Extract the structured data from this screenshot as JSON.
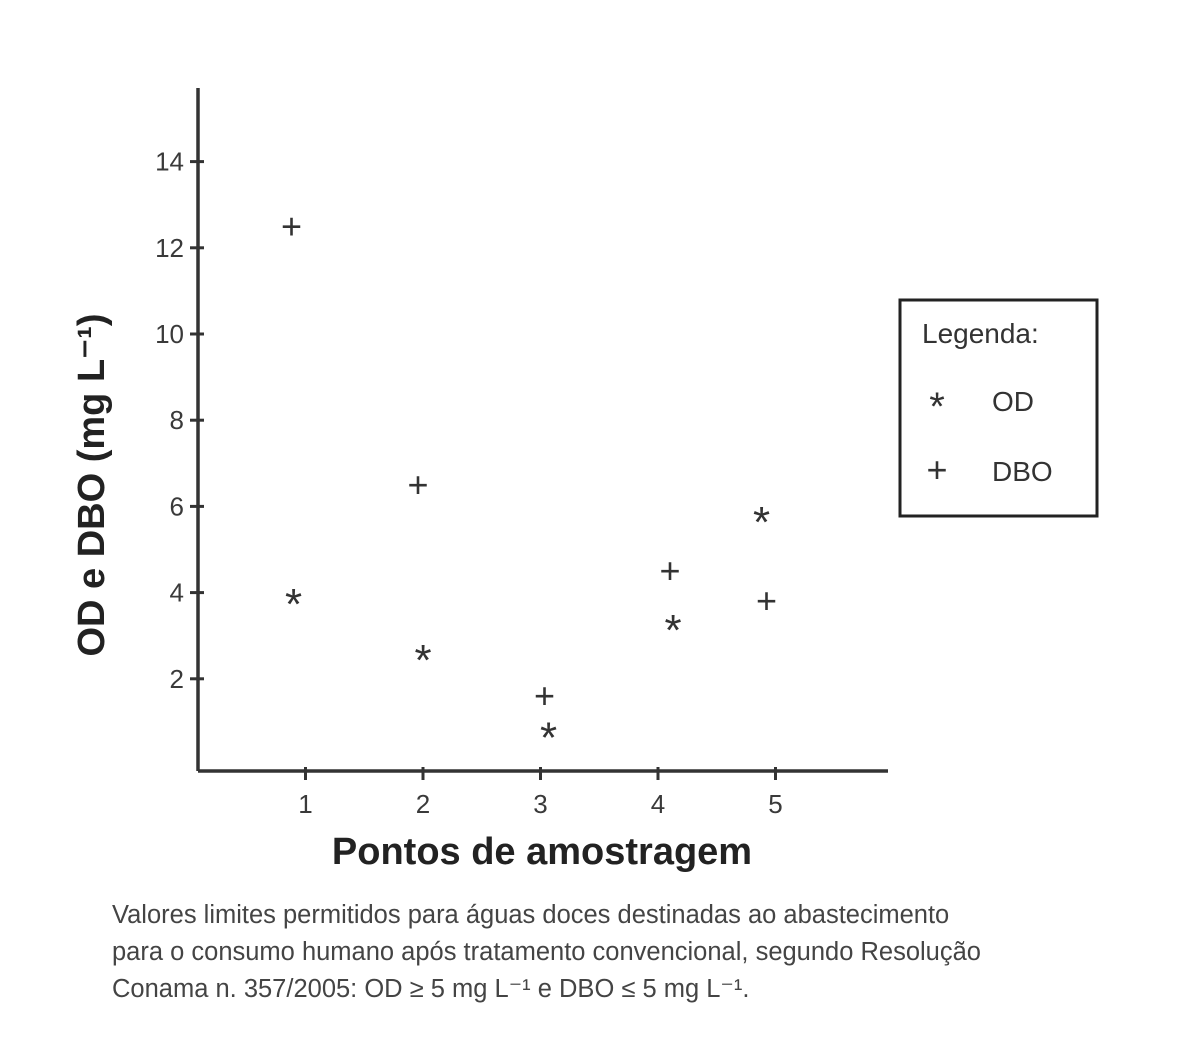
{
  "chart_data": {
    "type": "scatter",
    "xlabel": "Pontos de amostragem",
    "ylabel": "OD e DBO (mg L⁻¹)",
    "x_ticks": [
      "1",
      "2",
      "3",
      "4",
      "5"
    ],
    "y_ticks": [
      "2",
      "4",
      "6",
      "8",
      "10",
      "12",
      "14"
    ],
    "xlim": [
      0,
      6
    ],
    "ylim": [
      0,
      15
    ],
    "grid": false,
    "legend_position": "right",
    "legend_title": "Legenda:",
    "series": [
      {
        "name": "OD",
        "marker": "*",
        "x": [
          1,
          2,
          3,
          4,
          5
        ],
        "y": [
          3.9,
          2.6,
          0.8,
          3.3,
          5.8
        ]
      },
      {
        "name": "DBO",
        "marker": "+",
        "x": [
          1,
          2,
          3,
          4,
          5
        ],
        "y": [
          12.5,
          6.5,
          1.6,
          4.5,
          3.8
        ]
      }
    ]
  },
  "caption": {
    "line1": "Valores limites permitidos para águas doces destinadas ao abastecimento",
    "line2": "para o consumo humano após tratamento convencional, segundo Resolução",
    "line3": "Conama n. 357/2005: OD ≥ 5 mg L⁻¹  e  DBO ≤ 5 mg L⁻¹."
  },
  "colors": {
    "axis": "#333333",
    "text": "#333333"
  }
}
